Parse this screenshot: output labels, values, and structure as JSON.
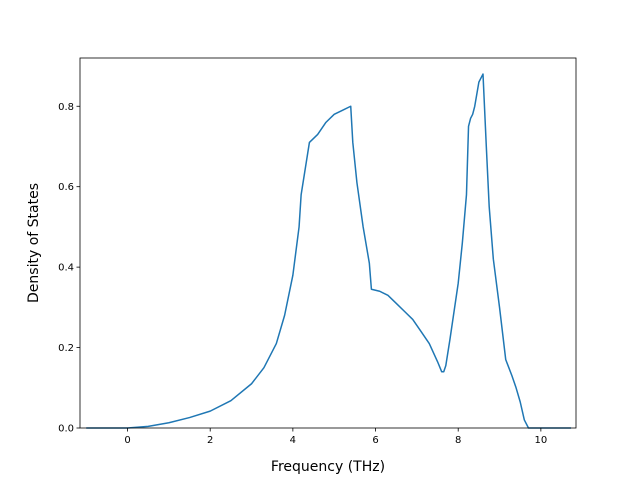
{
  "chart_data": {
    "type": "line",
    "title": "",
    "xlabel": "Frequency (THz)",
    "ylabel": "Density of States",
    "xlim": [
      -1.15,
      10.85
    ],
    "ylim": [
      0.0,
      0.92
    ],
    "xticks": [
      0,
      2,
      4,
      6,
      8,
      10
    ],
    "yticks": [
      0.0,
      0.2,
      0.4,
      0.6,
      0.8
    ],
    "xtick_labels": [
      "0",
      "2",
      "4",
      "6",
      "8",
      "10"
    ],
    "ytick_labels": [
      "0.0",
      "0.2",
      "0.4",
      "0.6",
      "0.8"
    ],
    "grid": false,
    "legend": "none",
    "series": [
      {
        "color": "#1f77b4",
        "x": [
          -1.0,
          0.0,
          0.5,
          1.0,
          1.5,
          2.0,
          2.5,
          3.0,
          3.3,
          3.6,
          3.8,
          4.0,
          4.1,
          4.15,
          4.2,
          4.4,
          4.6,
          4.8,
          5.0,
          5.2,
          5.4,
          5.45,
          5.55,
          5.7,
          5.85,
          5.9,
          6.1,
          6.3,
          6.5,
          6.7,
          6.9,
          7.1,
          7.3,
          7.5,
          7.6,
          7.65,
          7.7,
          7.8,
          8.0,
          8.1,
          8.2,
          8.25,
          8.3,
          8.35,
          8.4,
          8.5,
          8.6,
          8.68,
          8.75,
          8.85,
          9.0,
          9.15,
          9.3,
          9.4,
          9.5,
          9.6,
          9.7,
          9.78,
          9.85,
          10.0,
          10.73
        ],
        "y": [
          0.0,
          0.0,
          0.004,
          0.013,
          0.026,
          0.042,
          0.068,
          0.11,
          0.15,
          0.21,
          0.28,
          0.38,
          0.46,
          0.5,
          0.58,
          0.71,
          0.73,
          0.76,
          0.78,
          0.79,
          0.8,
          0.71,
          0.61,
          0.5,
          0.41,
          0.345,
          0.34,
          0.33,
          0.31,
          0.29,
          0.27,
          0.24,
          0.21,
          0.165,
          0.14,
          0.14,
          0.155,
          0.22,
          0.36,
          0.46,
          0.58,
          0.75,
          0.77,
          0.78,
          0.8,
          0.86,
          0.88,
          0.7,
          0.55,
          0.42,
          0.3,
          0.17,
          0.13,
          0.1,
          0.065,
          0.02,
          0.0,
          0.0,
          0.0,
          0.0,
          0.0
        ]
      }
    ]
  }
}
